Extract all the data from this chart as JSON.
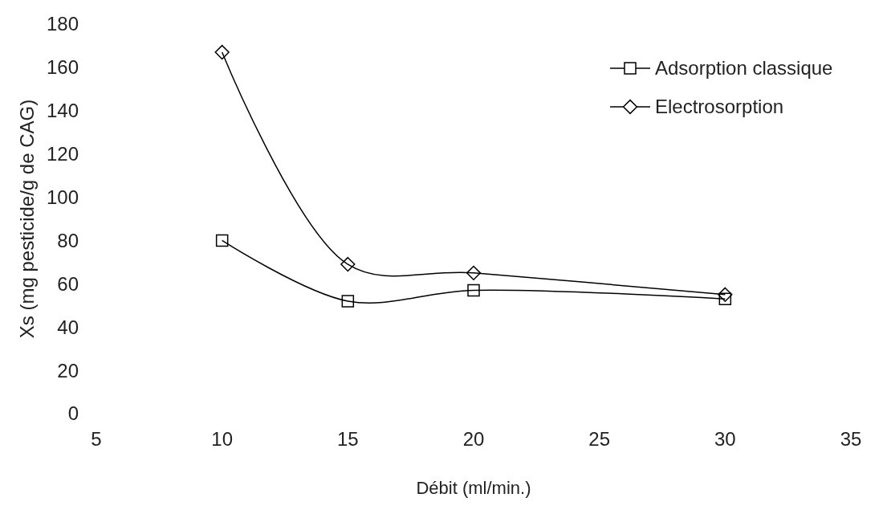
{
  "chart_data": {
    "type": "line",
    "xlabel": "Débit (ml/min.)",
    "ylabel": "Xs (mg pesticide/g de CAG)",
    "x": [
      10,
      15,
      20,
      30
    ],
    "series": [
      {
        "name": "Adsorption classique",
        "color": "#000000",
        "marker": "square",
        "values": [
          80,
          52,
          57,
          53
        ]
      },
      {
        "name": "Electrosorption",
        "color": "#000000",
        "marker": "diamond",
        "values": [
          167,
          69,
          65,
          55
        ]
      }
    ],
    "xlim": [
      5,
      35
    ],
    "xticks": [
      5,
      10,
      15,
      20,
      25,
      30,
      35
    ],
    "ylim": [
      0,
      180
    ],
    "yticks": [
      0,
      20,
      40,
      60,
      80,
      100,
      120,
      140,
      160,
      180
    ],
    "legend": "top right",
    "grid": false
  }
}
